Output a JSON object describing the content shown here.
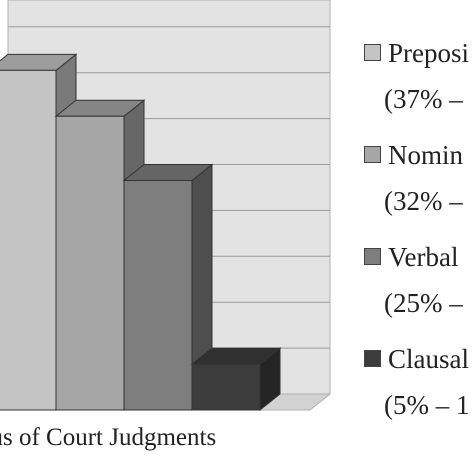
{
  "chart_data": {
    "type": "bar",
    "style": "3d",
    "xlabel": "ous of Court Judgments",
    "categories": [
      "Preposi",
      "Nomin",
      "Verbal",
      "Clausal"
    ],
    "values": [
      37,
      32,
      25,
      5
    ],
    "ylim": [
      0,
      40
    ],
    "grid": true,
    "legend_position": "right",
    "legend": [
      {
        "label": "Preposi",
        "pct": "(37% –",
        "color": "#c4c4c4"
      },
      {
        "label": "Nomin",
        "pct": "(32% –",
        "color": "#a6a6a6"
      },
      {
        "label": "Verbal",
        "pct": "(25% –",
        "color": "#7e7e7e"
      },
      {
        "label": "Clausal",
        "pct": "(5% – 1",
        "color": "#3c3c3c"
      }
    ]
  }
}
